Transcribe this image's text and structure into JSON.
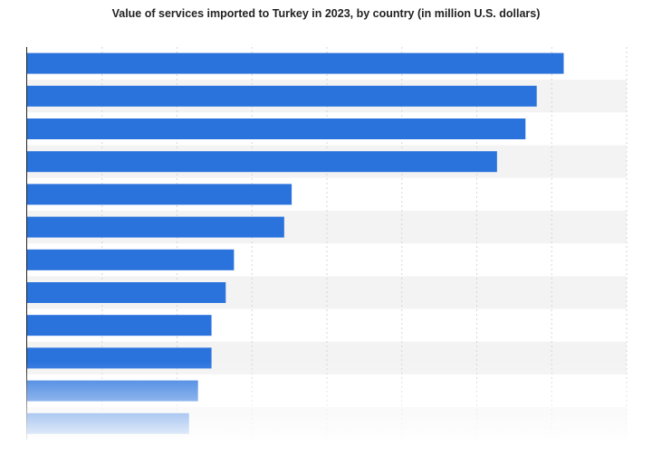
{
  "chart_data": {
    "type": "bar",
    "orientation": "horizontal",
    "title": "Value of services imported to Turkey in 2023, by country (in million U.S. dollars)",
    "categories": [
      "",
      "",
      "",
      "",
      "",
      "",
      "",
      "",
      "",
      "",
      "",
      ""
    ],
    "values": [
      3580,
      3400,
      3325,
      3135,
      1765,
      1715,
      1380,
      1325,
      1230,
      1230,
      1140,
      1080
    ],
    "xlim": [
      0,
      4000
    ],
    "grid": true,
    "legend": "none",
    "colors": {
      "bar": "#2a73dd",
      "band_odd": "#ffffff",
      "band_even": "#f3f3f3",
      "grid": "#d6d6d6",
      "axis": "#222222"
    }
  }
}
